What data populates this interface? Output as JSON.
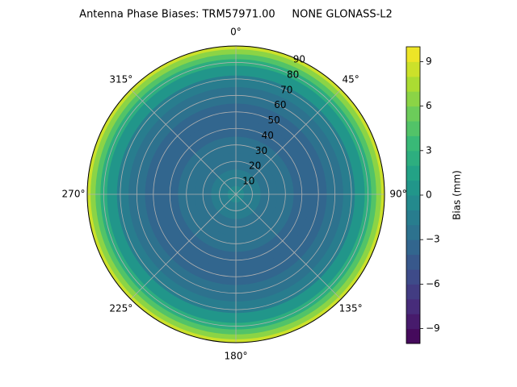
{
  "chart_data": {
    "type": "polar_contour",
    "title": "Antenna Phase Biases: TRM57971.00     NONE GLONASS-L2",
    "colorbar_label": "Bias (mm)",
    "colormap": "viridis",
    "clim": [
      -10,
      10
    ],
    "levels": [
      -10,
      -9,
      -8,
      -7,
      -6,
      -5,
      -4,
      -3,
      -2,
      -1,
      0,
      1,
      2,
      3,
      4,
      5,
      6,
      7,
      8,
      9,
      10
    ],
    "cticks": [
      {
        "value": -9,
        "label": "−9"
      },
      {
        "value": -6,
        "label": "−6"
      },
      {
        "value": -3,
        "label": "−3"
      },
      0,
      3,
      6,
      9
    ],
    "ylim": [
      0,
      90
    ],
    "yticks": [
      10,
      20,
      30,
      40,
      50,
      60,
      70,
      80,
      90
    ],
    "xticks": [
      {
        "value": 0,
        "label": "0°"
      },
      {
        "value": 45,
        "label": "45°"
      },
      {
        "value": 90,
        "label": "90°"
      },
      {
        "value": 135,
        "label": "135°"
      },
      {
        "value": 180,
        "label": "180°"
      },
      {
        "value": 225,
        "label": "225°"
      },
      {
        "value": 270,
        "label": "270°"
      },
      {
        "value": 315,
        "label": "315°"
      }
    ],
    "grid": true,
    "r": [
      5,
      15,
      25,
      35,
      45,
      55,
      65,
      72,
      78,
      82,
      85,
      88,
      90
    ],
    "values": [
      -1,
      -1.5,
      -2.5,
      -3,
      -3.5,
      -3.5,
      -3,
      -2,
      0,
      2,
      4,
      6,
      8
    ]
  }
}
